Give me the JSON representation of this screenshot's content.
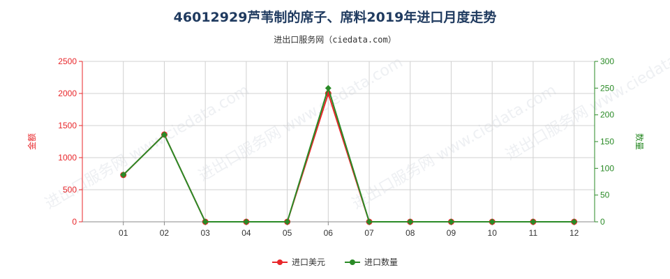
{
  "title": "46012929芦苇制的席子、席料2019年进口月度走势",
  "subtitle": "进出口服务网（ciedata.com）",
  "watermark": "进出口服务网 www.ciedata.com",
  "colors": {
    "left": "#e8262a",
    "right": "#2a8a26",
    "grid": "#d0d0d0"
  },
  "chart_data": {
    "type": "line",
    "categories": [
      "01",
      "02",
      "03",
      "04",
      "05",
      "06",
      "07",
      "08",
      "09",
      "10",
      "11",
      "12"
    ],
    "y_left": {
      "label": "金额",
      "lim": [
        0,
        2500
      ],
      "ticks": [
        0,
        500,
        1000,
        1500,
        2000,
        2500
      ]
    },
    "y_right": {
      "label": "数量",
      "lim": [
        0,
        300
      ],
      "ticks": [
        0,
        50,
        100,
        150,
        200,
        250,
        300
      ]
    },
    "grid": true,
    "legend_position": "bottom-center",
    "series": [
      {
        "name": "进口美元",
        "axis": "left",
        "color": "#e8262a",
        "marker": "circle",
        "values": [
          730,
          1360,
          0,
          0,
          0,
          2000,
          0,
          0,
          0,
          0,
          0,
          0
        ]
      },
      {
        "name": "进口数量",
        "axis": "right",
        "color": "#2a8a26",
        "marker": "diamond",
        "values": [
          88,
          163,
          0,
          0,
          0,
          250,
          0,
          0,
          0,
          0,
          0,
          0
        ]
      }
    ]
  }
}
